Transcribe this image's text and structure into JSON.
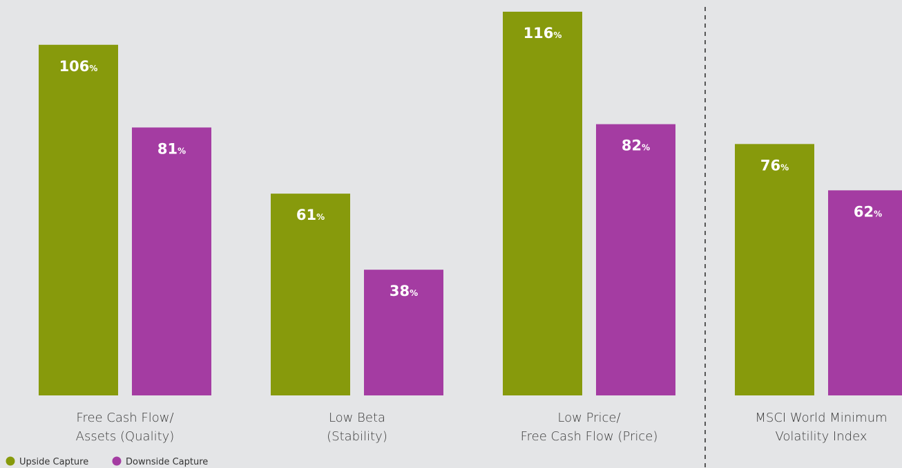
{
  "chart_data": {
    "type": "bar",
    "categories": [
      [
        "Free Cash Flow/",
        "Assets (Quality)"
      ],
      [
        "Low Beta",
        "(Stability)"
      ],
      [
        "Low Price/",
        "Free Cash Flow (Price)"
      ],
      [
        "MSCI World Minimum",
        "Volatility Index"
      ]
    ],
    "series": [
      {
        "name": "Upside Capture",
        "color": "#879a0c",
        "values": [
          106,
          61,
          116,
          76
        ],
        "value_labels": [
          "106%",
          "61%",
          "116%",
          "76%"
        ]
      },
      {
        "name": "Downside Capture",
        "color": "#a43ca2",
        "values": [
          81,
          38,
          82,
          62
        ],
        "value_labels": [
          "81%",
          "38%",
          "82%",
          "62%"
        ]
      }
    ],
    "legend": "bottom-left"
  }
}
